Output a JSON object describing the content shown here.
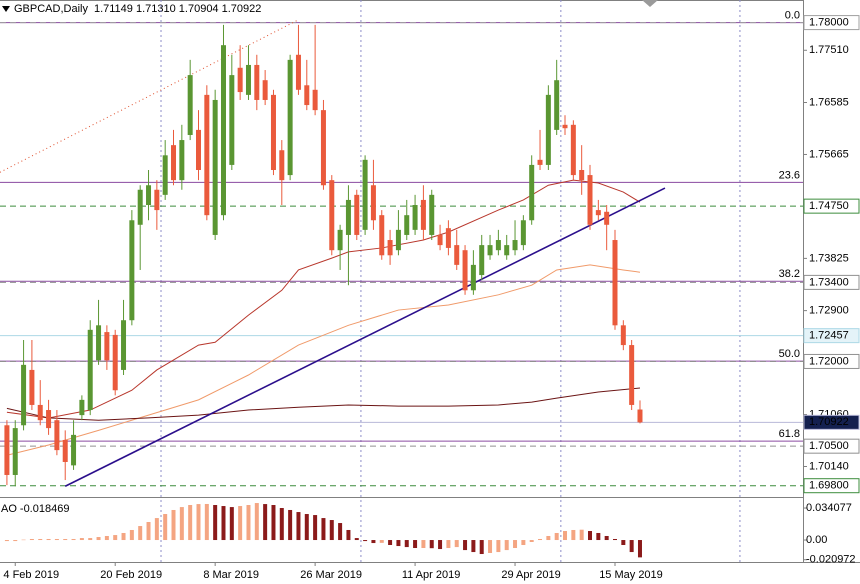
{
  "header": {
    "symbol": "GBPCAD,Daily",
    "quote": "1.71149 1.71310 1.70904 1.70922"
  },
  "chart_data": {
    "type": "candlestick",
    "open": [
      1.7087,
      1.6999,
      1.7087,
      1.7185,
      1.7123,
      1.7114,
      1.7096,
      1.7061,
      1.7016,
      1.7105,
      1.7114,
      1.7202,
      1.7252,
      1.7247,
      1.7185,
      1.7273,
      1.7442,
      1.7477,
      1.7504,
      1.7495,
      1.7583,
      1.7521,
      1.7601,
      1.761,
      1.7672,
      1.7424,
      1.7459,
      1.7548,
      1.772,
      1.7672,
      1.7725,
      1.7698,
      1.7672,
      1.7574,
      1.753,
      1.7743,
      1.7689,
      1.7681,
      1.7645,
      1.7521,
      1.7397,
      1.7424,
      1.7495,
      1.7433,
      1.7512,
      1.7459,
      1.7415,
      1.7397,
      1.7424,
      1.7433,
      1.7486,
      1.7424,
      1.7424,
      1.7436,
      1.7406,
      1.7397,
      1.7326,
      1.7353,
      1.7388,
      1.7397,
      1.7388,
      1.7397,
      1.7406,
      1.745,
      1.7557,
      1.7548,
      1.761,
      1.7619,
      1.7619,
      1.7539,
      1.753,
      1.7468,
      1.7465,
      1.7415,
      1.7264,
      1.7229,
      1.71149
    ],
    "high": [
      1.7096,
      1.7096,
      1.7238,
      1.7238,
      1.7167,
      1.7132,
      1.7114,
      1.7078,
      1.7096,
      1.714,
      1.7273,
      1.7309,
      1.7264,
      1.7256,
      1.7309,
      1.7468,
      1.7512,
      1.7539,
      1.7521,
      1.7592,
      1.761,
      1.7619,
      1.7734,
      1.7645,
      1.7689,
      1.7681,
      1.7796,
      1.7743,
      1.776,
      1.776,
      1.7743,
      1.7716,
      1.7681,
      1.7592,
      1.7743,
      1.7796,
      1.7734,
      1.7796,
      1.7663,
      1.753,
      1.7442,
      1.7512,
      1.7504,
      1.7565,
      1.7557,
      1.7468,
      1.7433,
      1.7468,
      1.7486,
      1.7495,
      1.7512,
      1.7504,
      1.7442,
      1.745,
      1.7433,
      1.7406,
      1.7397,
      1.7424,
      1.7424,
      1.7433,
      1.7424,
      1.745,
      1.7459,
      1.7565,
      1.761,
      1.7689,
      1.7734,
      1.7636,
      1.7627,
      1.7583,
      1.7548,
      1.7486,
      1.7477,
      1.7433,
      1.7273,
      1.7238,
      1.7131
    ],
    "low": [
      1.6981,
      1.6979,
      1.7078,
      1.7114,
      1.7087,
      1.707,
      1.7034,
      1.699,
      1.7008,
      1.7096,
      1.7105,
      1.7194,
      1.7185,
      1.714,
      1.7176,
      1.7264,
      1.7362,
      1.745,
      1.7433,
      1.7486,
      1.7512,
      1.7504,
      1.7592,
      1.7521,
      1.745,
      1.7415,
      1.745,
      1.7539,
      1.7663,
      1.7663,
      1.7645,
      1.7654,
      1.753,
      1.7477,
      1.7521,
      1.7672,
      1.7645,
      1.7636,
      1.7504,
      1.7388,
      1.7362,
      1.7335,
      1.7415,
      1.7424,
      1.7433,
      1.738,
      1.7371,
      1.7388,
      1.7415,
      1.7424,
      1.7415,
      1.7415,
      1.7397,
      1.7388,
      1.7362,
      1.7318,
      1.7318,
      1.7344,
      1.738,
      1.7388,
      1.738,
      1.7388,
      1.7397,
      1.7442,
      1.7539,
      1.7539,
      1.7601,
      1.7601,
      1.7521,
      1.7495,
      1.7433,
      1.745,
      1.7397,
      1.7256,
      1.722,
      1.7114,
      1.70904
    ],
    "close": [
      1.6999,
      1.7082,
      1.7194,
      1.7123,
      1.7096,
      1.7082,
      1.7043,
      1.7022,
      1.707,
      1.7132,
      1.7256,
      1.7264,
      1.7202,
      1.7149,
      1.7273,
      1.745,
      1.7504,
      1.7512,
      1.7468,
      1.7565,
      1.7521,
      1.7592,
      1.7707,
      1.7539,
      1.7459,
      1.7663,
      1.776,
      1.7707,
      1.7677,
      1.7725,
      1.7663,
      1.7663,
      1.7539,
      1.7521,
      1.7734,
      1.7681,
      1.7654,
      1.7645,
      1.7512,
      1.7397,
      1.7433,
      1.7486,
      1.7424,
      1.7557,
      1.745,
      1.7388,
      1.7388,
      1.7433,
      1.7459,
      1.7477,
      1.7433,
      1.7495,
      1.7406,
      1.7401,
      1.7371,
      1.7326,
      1.7371,
      1.7406,
      1.7406,
      1.7415,
      1.7406,
      1.7415,
      1.745,
      1.7548,
      1.7548,
      1.7672,
      1.7698,
      1.7613,
      1.753,
      1.7521,
      1.7442,
      1.7459,
      1.7442,
      1.7264,
      1.7229,
      1.7123,
      1.70922
    ],
    "up_color": "#5a9632",
    "down_color": "#ea5a3c",
    "xlim": [
      -0.83,
      95.57
    ],
    "ylim": [
      1.696,
      1.784
    ],
    "xticks": [
      {
        "value": 1,
        "label": "4 Feb 2019"
      },
      {
        "value": 13,
        "label": "20 Feb 2019"
      },
      {
        "value": 25,
        "label": "8 Mar 2019"
      },
      {
        "value": 37,
        "label": "26 Mar 2019"
      },
      {
        "value": 49,
        "label": "11 Apr 2019"
      },
      {
        "value": 61,
        "label": "29 Apr 2019"
      },
      {
        "value": 73,
        "label": "15 May 2019"
      }
    ],
    "xgrid": [
      18.5,
      42.5,
      66.5,
      88
    ],
    "yticks": [
      {
        "value": 1.7751,
        "label": "1.77510"
      },
      1.76585,
      1.75665,
      1.73825,
      {
        "value": 1.729,
        "label": "1.72900"
      },
      {
        "value": 1.7106,
        "label": "1.71060"
      },
      {
        "value": 1.7014,
        "label": "1.70140"
      }
    ],
    "moving_averages": [
      {
        "color": "#b8372c",
        "x": [
          0,
          5,
          10,
          15,
          18,
          23,
          25,
          29,
          33,
          35,
          39,
          41,
          45,
          50,
          53,
          59,
          62,
          65,
          68,
          71,
          74,
          76
        ],
        "values": [
          1.711,
          1.71,
          1.7114,
          1.7149,
          1.7185,
          1.7229,
          1.7234,
          1.7282,
          1.7326,
          1.7362,
          1.7383,
          1.7394,
          1.7401,
          1.7415,
          1.7429,
          1.7468,
          1.7486,
          1.7512,
          1.7521,
          1.7516,
          1.75,
          1.7482
        ]
      },
      {
        "color": "#f09a6a",
        "x": [
          0,
          5,
          11,
          17,
          23,
          29,
          35,
          41,
          47,
          53,
          59,
          63,
          66,
          70,
          74,
          76
        ],
        "values": [
          1.7034,
          1.7052,
          1.7078,
          1.7105,
          1.7132,
          1.7176,
          1.7229,
          1.7264,
          1.7291,
          1.73,
          1.7318,
          1.7335,
          1.7362,
          1.7371,
          1.7362,
          1.7358
        ]
      },
      {
        "color": "#6b1414",
        "x": [
          0,
          5,
          11,
          17,
          23,
          29,
          35,
          41,
          47,
          53,
          59,
          63,
          66,
          71,
          76
        ],
        "values": [
          1.7117,
          1.71,
          1.7096,
          1.71,
          1.7105,
          1.7114,
          1.7119,
          1.7123,
          1.7121,
          1.7121,
          1.7123,
          1.7128,
          1.7135,
          1.7146,
          1.7153
        ]
      }
    ],
    "trendlines": [
      {
        "color": "#2b0f8c",
        "dash": false,
        "x": [
          7,
          79
        ],
        "values": [
          1.6979,
          1.7507
        ]
      },
      {
        "color": "#e0502e",
        "dash": true,
        "x": [
          -0.83,
          35
        ],
        "values": [
          1.7535,
          1.7805
        ]
      }
    ],
    "levels": [
      {
        "value": 1.78,
        "label": "1.78000",
        "color": "#a0a0a0",
        "dash": true,
        "box": "#ffffff",
        "text_color": "#000000"
      },
      {
        "value": 1.7475,
        "label": "1.74750",
        "color": "#3c8c3c",
        "dash": true,
        "box": "#ffffff",
        "text_color": "#000000"
      },
      {
        "value": 1.734,
        "label": "1.73400",
        "color": "#909090",
        "dash": true,
        "box": "#ffffff",
        "text_color": "#000000"
      },
      {
        "value": 1.72457,
        "label": "1.72457",
        "color": "#add8e6",
        "dash": false,
        "box": "#e4f3f8",
        "text_color": "#9a9a9a"
      },
      {
        "value": 1.72,
        "label": "1.72000",
        "color": "#909090",
        "dash": true,
        "box": "#ffffff",
        "text_color": "#000000"
      },
      {
        "value": 1.70922,
        "label": "1.70922",
        "color": "#b8b8d8",
        "dash": false,
        "box": "#14204f",
        "text_color": "#ffffff"
      },
      {
        "value": 1.705,
        "label": "1.70500",
        "color": "#909090",
        "dash": true,
        "box": "#ffffff",
        "text_color": "#000000"
      },
      {
        "value": 1.698,
        "label": "1.69800",
        "color": "#3c8c3c",
        "dash": true,
        "box": "#ffffff",
        "text_color": "#000000"
      }
    ],
    "fibonacci": {
      "high": 1.78,
      "low": 1.6601,
      "color": "#8a4aa0",
      "levels": [
        {
          "value": 0,
          "label": "0.0"
        },
        23.6,
        38.2,
        {
          "value": 50,
          "label": "50.0"
        },
        61.8
      ]
    },
    "ao": {
      "name": "AO",
      "rise_color": "#f4a582",
      "fall_color": "#8b1a1a",
      "ylim": [
        -0.0234,
        0.0437
      ],
      "yticks": [
        0.034077,
        {
          "value": 0,
          "label": "0.00"
        },
        -0.020972
      ],
      "values": [
        -0.0011,
        -0.0011,
        0.0004,
        0.0011,
        0.0011,
        0.0011,
        0.0011,
        0.0011,
        0.0011,
        0.0021,
        0.0021,
        0.0032,
        0.0043,
        0.0053,
        0.0075,
        0.0107,
        0.0149,
        0.0192,
        0.0234,
        0.0277,
        0.032,
        0.0351,
        0.0373,
        0.0383,
        0.0384,
        0.0373,
        0.0362,
        0.0351,
        0.0362,
        0.0373,
        0.0394,
        0.0383,
        0.0373,
        0.0341,
        0.032,
        0.0298,
        0.0277,
        0.0266,
        0.0234,
        0.0213,
        0.0181,
        0.0107,
        0.0021,
        -0.0011,
        -0.0032,
        -0.003,
        -0.0053,
        -0.0064,
        -0.0075,
        -0.0085,
        -0.0085,
        -0.0087,
        -0.0096,
        -0.0085,
        -0.0075,
        -0.0107,
        -0.0128,
        -0.0149,
        -0.0138,
        -0.0128,
        -0.0107,
        -0.0085,
        -0.0053,
        -0.0021,
        0.0011,
        0.0043,
        0.0075,
        0.0096,
        0.0107,
        0.011,
        0.0096,
        0.0075,
        0.0043,
        0.0011,
        -0.0053,
        -0.0128,
        -0.018469
      ]
    }
  }
}
